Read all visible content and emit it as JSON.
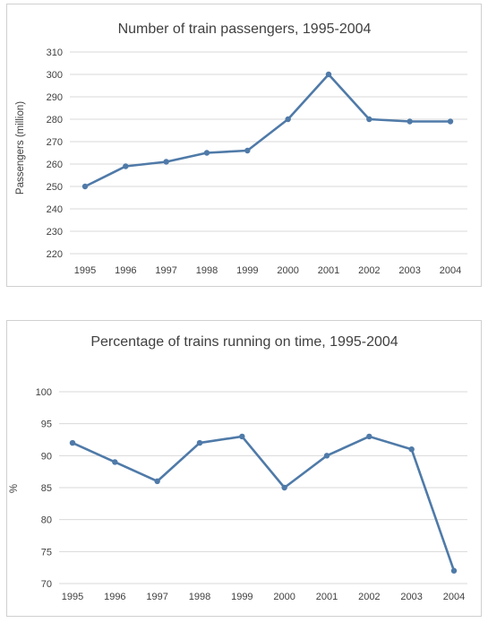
{
  "chart_data": [
    {
      "type": "line",
      "title": "Number of train passengers, 1995-2004",
      "xlabel": "",
      "ylabel": "Passengers (million)",
      "categories": [
        "1995",
        "1996",
        "1997",
        "1998",
        "1999",
        "2000",
        "2001",
        "2002",
        "2003",
        "2004"
      ],
      "values": [
        250,
        259,
        261,
        265,
        266,
        280,
        300,
        280,
        279,
        279
      ],
      "ylim": [
        220,
        310
      ],
      "yticks": [
        "220",
        "230",
        "240",
        "250",
        "260",
        "270",
        "280",
        "290",
        "300",
        "310"
      ],
      "grid": true,
      "colors": {
        "series": "#4f7aa8",
        "grid": "#d9d9d9"
      }
    },
    {
      "type": "line",
      "title": "Percentage of trains running on time, 1995-2004",
      "xlabel": "",
      "ylabel": "%",
      "categories": [
        "1995",
        "1996",
        "1997",
        "1998",
        "1999",
        "2000",
        "2001",
        "2002",
        "2003",
        "2004"
      ],
      "values": [
        92,
        89,
        86,
        92,
        93,
        85,
        90,
        93,
        91,
        72
      ],
      "ylim": [
        70,
        100
      ],
      "yticks": [
        "70",
        "75",
        "80",
        "85",
        "90",
        "95",
        "100"
      ],
      "grid": true,
      "colors": {
        "series": "#4f7aa8",
        "grid": "#d9d9d9"
      }
    }
  ]
}
